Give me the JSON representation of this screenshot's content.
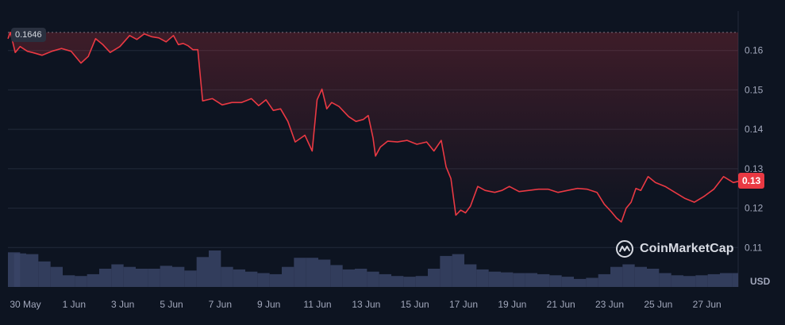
{
  "chart_data": {
    "type": "line",
    "currency": "USD",
    "start_label": "0.1646",
    "current_label": "0.13",
    "watermark": "CoinMarketCap",
    "ylim": [
      0.1,
      0.17
    ],
    "y_ticks": [
      {
        "value": 0.16,
        "label": "0.16"
      },
      {
        "value": 0.15,
        "label": "0.15"
      },
      {
        "value": 0.14,
        "label": "0.14"
      },
      {
        "value": 0.13,
        "label": "0.13"
      },
      {
        "value": 0.12,
        "label": "0.12"
      },
      {
        "value": 0.11,
        "label": "0.11"
      }
    ],
    "x_ticks": [
      "30 May",
      "1 Jun",
      "3 Jun",
      "5 Jun",
      "7 Jun",
      "9 Jun",
      "11 Jun",
      "13 Jun",
      "15 Jun",
      "17 Jun",
      "19 Jun",
      "21 Jun",
      "23 Jun",
      "25 Jun",
      "27 Jun"
    ],
    "xlim": [
      0,
      30
    ],
    "series": [
      {
        "x": [
          0,
          0.1,
          0.3,
          0.5,
          0.8,
          1.0,
          1.4,
          1.8,
          2.2,
          2.6,
          3.0,
          3.3,
          3.6,
          3.9,
          4.2,
          4.6,
          5.0,
          5.3,
          5.6,
          5.9,
          6.2,
          6.5,
          6.8,
          7.0,
          7.2,
          7.4,
          7.6,
          7.8,
          8.0,
          8.4,
          8.8,
          9.2,
          9.6,
          10.0,
          10.3,
          10.6,
          10.9,
          11.2,
          11.5,
          11.8,
          12.2,
          12.5,
          12.7,
          12.9,
          13.1,
          13.3,
          13.6,
          14.0,
          14.3,
          14.6,
          14.8,
          15.0,
          15.1,
          15.3,
          15.6,
          16.0,
          16.4,
          16.8,
          17.2,
          17.5,
          17.8,
          18.0,
          18.2,
          18.4,
          18.6,
          18.8,
          19.0,
          19.3,
          19.6,
          20.0,
          20.3,
          20.6,
          21.0,
          21.4,
          21.8,
          22.2,
          22.6,
          23.0,
          23.4,
          23.8,
          24.2,
          24.5,
          24.8,
          25.0,
          25.2,
          25.4,
          25.6,
          25.8,
          26.0,
          26.3,
          26.6,
          27.0,
          27.4,
          27.8,
          28.2,
          28.6,
          29.0,
          29.4,
          29.8,
          30.0
        ],
        "y": [
          0.163,
          0.1646,
          0.1595,
          0.161,
          0.1598,
          0.1595,
          0.1588,
          0.1598,
          0.1605,
          0.1598,
          0.1568,
          0.1585,
          0.163,
          0.1615,
          0.1595,
          0.161,
          0.1638,
          0.1628,
          0.1642,
          0.1635,
          0.1632,
          0.1622,
          0.1638,
          0.1615,
          0.1618,
          0.1612,
          0.1602,
          0.1602,
          0.1472,
          0.1478,
          0.1462,
          0.1468,
          0.1468,
          0.1478,
          0.146,
          0.1475,
          0.1448,
          0.1452,
          0.142,
          0.1368,
          0.1385,
          0.1345,
          0.1475,
          0.1502,
          0.1452,
          0.1468,
          0.1458,
          0.1432,
          0.142,
          0.1425,
          0.1435,
          0.1378,
          0.1332,
          0.1355,
          0.137,
          0.1368,
          0.1372,
          0.1362,
          0.1368,
          0.1345,
          0.1372,
          0.1305,
          0.1275,
          0.1182,
          0.1195,
          0.1188,
          0.1205,
          0.1255,
          0.1245,
          0.124,
          0.1245,
          0.1255,
          0.1242,
          0.1245,
          0.1248,
          0.1248,
          0.124,
          0.1245,
          0.125,
          0.1248,
          0.124,
          0.121,
          0.119,
          0.1175,
          0.1165,
          0.12,
          0.1215,
          0.125,
          0.1245,
          0.128,
          0.1265,
          0.1255,
          0.124,
          0.1225,
          0.1215,
          0.123,
          0.1248,
          0.128,
          0.1265,
          0.1268
        ]
      }
    ],
    "volume": {
      "x": [
        0,
        0.5,
        1.0,
        1.5,
        2.0,
        2.5,
        3.0,
        3.5,
        4.0,
        4.5,
        5.0,
        5.5,
        6.0,
        6.5,
        7.0,
        7.5,
        8.0,
        8.5,
        9.0,
        9.5,
        10.0,
        10.5,
        11.0,
        11.5,
        12.0,
        12.5,
        13.0,
        13.5,
        14.0,
        14.5,
        15.0,
        15.5,
        16.0,
        16.5,
        17.0,
        17.5,
        18.0,
        18.5,
        19.0,
        19.5,
        20.0,
        20.5,
        21.0,
        21.5,
        22.0,
        22.5,
        23.0,
        23.5,
        24.0,
        24.5,
        25.0,
        25.5,
        26.0,
        26.5,
        27.0,
        27.5,
        28.0,
        28.5,
        29.0,
        29.5,
        30.0
      ],
      "values": [
        0.95,
        0.92,
        0.9,
        0.7,
        0.55,
        0.32,
        0.3,
        0.35,
        0.5,
        0.62,
        0.55,
        0.5,
        0.5,
        0.58,
        0.55,
        0.45,
        0.82,
        1.0,
        0.55,
        0.48,
        0.42,
        0.38,
        0.35,
        0.55,
        0.8,
        0.8,
        0.75,
        0.6,
        0.48,
        0.5,
        0.42,
        0.35,
        0.3,
        0.28,
        0.3,
        0.5,
        0.85,
        0.9,
        0.62,
        0.48,
        0.42,
        0.4,
        0.38,
        0.38,
        0.35,
        0.32,
        0.28,
        0.22,
        0.25,
        0.35,
        0.55,
        0.62,
        0.55,
        0.5,
        0.38,
        0.32,
        0.3,
        0.32,
        0.35,
        0.38,
        0.38
      ]
    }
  }
}
